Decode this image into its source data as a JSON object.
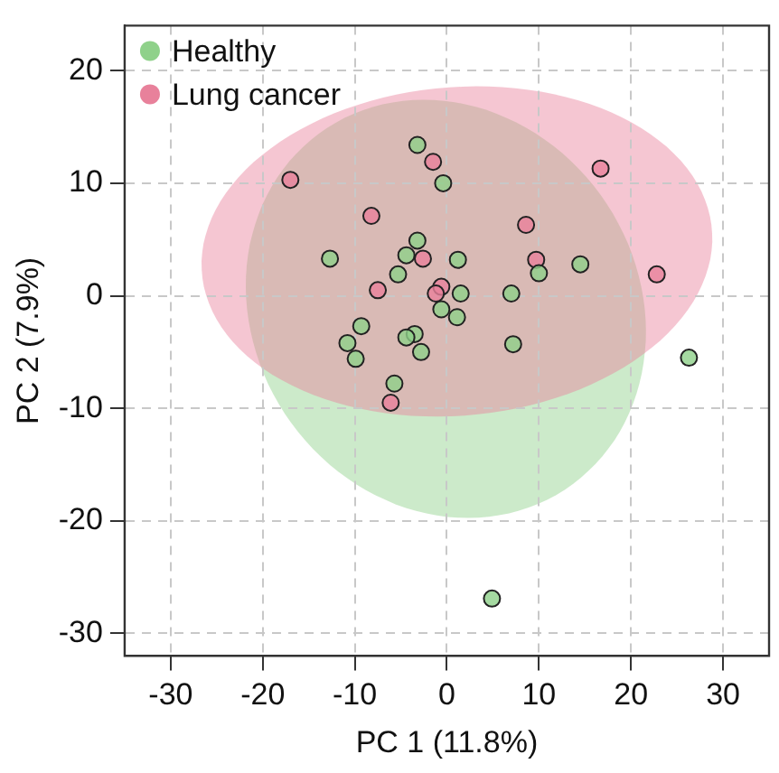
{
  "chart_data": {
    "type": "scatter",
    "xlabel": "PC 1 (11.8%)",
    "ylabel": "PC 2 (7.9%)",
    "xlim": [
      -35,
      35
    ],
    "ylim": [
      -32,
      24
    ],
    "xticks": [
      -30,
      -20,
      -10,
      0,
      10,
      20,
      30
    ],
    "yticks": [
      -30,
      -20,
      -10,
      0,
      10,
      20
    ],
    "grid": true,
    "legend": "top left",
    "marker": "circle",
    "series": [
      {
        "name": "Healthy",
        "color": "#8fd18a",
        "x": [
          -3.2,
          -0.4,
          -3.2,
          -4.4,
          -12.7,
          1.2,
          14.5,
          10.0,
          -5.3,
          1.5,
          7.0,
          -0.6,
          1.1,
          -9.3,
          -3.5,
          -4.4,
          -10.8,
          -9.9,
          -2.8,
          7.2,
          -5.7,
          26.3,
          4.9
        ],
        "values": [
          13.4,
          10.0,
          4.9,
          3.6,
          3.3,
          3.2,
          2.8,
          2.0,
          1.9,
          0.2,
          0.2,
          -1.2,
          -1.9,
          -2.7,
          -3.4,
          -3.7,
          -4.2,
          -5.6,
          -5.0,
          -4.3,
          -7.8,
          -5.5,
          -26.9
        ]
      },
      {
        "name": "Lung cancer",
        "color": "#e8819b",
        "x": [
          -17.0,
          -1.5,
          16.7,
          -8.2,
          8.6,
          -2.6,
          9.7,
          22.8,
          -7.5,
          -0.6,
          -1.2,
          -6.1
        ],
        "values": [
          10.3,
          11.9,
          11.3,
          7.1,
          6.3,
          3.3,
          3.2,
          1.9,
          0.5,
          0.8,
          0.2,
          -9.5
        ]
      }
    ]
  }
}
